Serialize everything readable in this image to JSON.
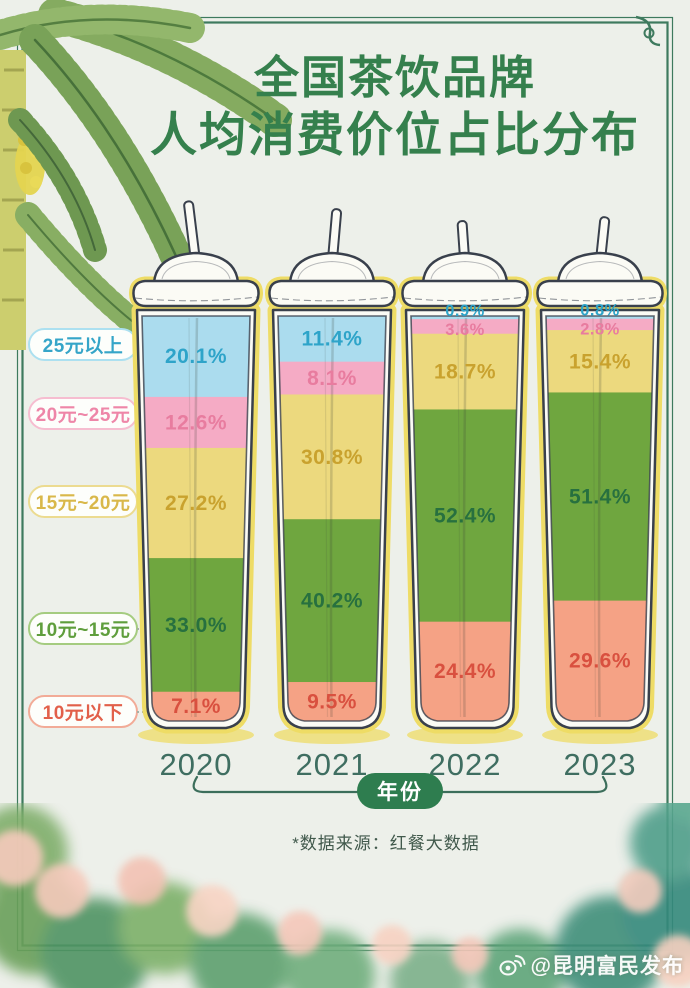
{
  "title": {
    "line1": "全国茶饮品牌",
    "line2": "人均消费价位占比分布"
  },
  "chart_data": {
    "type": "bar",
    "stacked": true,
    "orientation": "vertical",
    "title": "全国茶饮品牌人均消费价位占比分布",
    "xlabel": "年份",
    "unit": "%",
    "value_suffix": "%",
    "categories": [
      "2020",
      "2021",
      "2022",
      "2023"
    ],
    "series": [
      {
        "name": "25元以上",
        "fill": "#abdcee",
        "label_color": "#2ea4c9",
        "pill_text_color": "#35a5c8",
        "pill_border_color": "#ace0f0",
        "values": [
          "20.1",
          "11.4",
          "0.9",
          "0.8"
        ]
      },
      {
        "name": "20元~25元",
        "fill": "#f5abc5",
        "label_color": "#e87c9f",
        "pill_text_color": "#ee86a8",
        "pill_border_color": "#f6bdd0",
        "values": [
          "12.6",
          "8.1",
          "3.6",
          "2.8"
        ]
      },
      {
        "name": "15元~20元",
        "fill": "#ecd97e",
        "label_color": "#c9a22e",
        "pill_text_color": "#d9b84a",
        "pill_border_color": "#ecdb90",
        "values": [
          "27.2",
          "30.8",
          "18.7",
          "15.4"
        ]
      },
      {
        "name": "10元~15元",
        "fill": "#6fa63f",
        "label_color": "#27703f",
        "pill_text_color": "#5f9e3c",
        "pill_border_color": "#a5cc80",
        "values": [
          "33.0",
          "40.2",
          "52.4",
          "51.4"
        ]
      },
      {
        "name": "10元以下",
        "fill": "#f5a285",
        "label_color": "#d9503f",
        "pill_text_color": "#e2604a",
        "pill_border_color": "#f2ab97",
        "values": [
          "7.1",
          "9.5",
          "24.4",
          "29.6"
        ]
      }
    ]
  },
  "axis": {
    "x_title": "年份"
  },
  "source_note": "*数据来源：红餐大数据",
  "watermark": {
    "icon": "weibo-icon",
    "text": "@昆明富民发布"
  },
  "colors": {
    "background": "#edf0ea",
    "frame": "#3e7a5e",
    "title": "#35804d",
    "year_text": "#3f6e61",
    "axis_line": "#3c6e5b",
    "cup_outline": "#39404c",
    "cup_glow": "#eedc66",
    "year_pill_bg": "#2e7d4f",
    "year_pill_text": "#ffffff"
  }
}
